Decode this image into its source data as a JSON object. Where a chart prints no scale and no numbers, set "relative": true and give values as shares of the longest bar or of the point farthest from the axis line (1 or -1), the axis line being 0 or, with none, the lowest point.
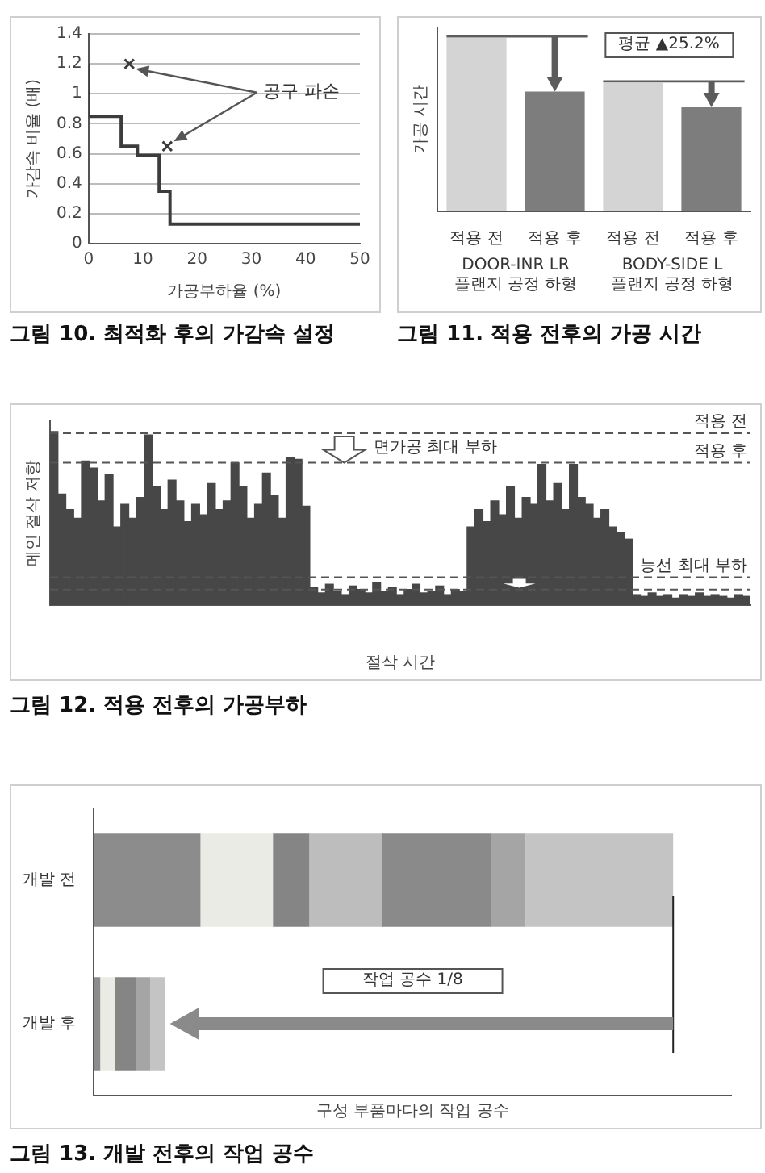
{
  "chart_data": [
    {
      "type": "step",
      "title": "그림 10. 최적화 후의 가감속 설정",
      "xlabel": "가공부하율 (%)",
      "ylabel": "가감속 비율 (배)",
      "xlim": [
        0,
        50
      ],
      "xticks": [
        0,
        10,
        20,
        30,
        40,
        50
      ],
      "ylim": [
        0,
        1.4
      ],
      "yticks": [
        0,
        0.2,
        0.4,
        0.6,
        0.8,
        1,
        1.2,
        1.4
      ],
      "grid": "y",
      "annotations": [
        "공구 파손"
      ],
      "series": [
        {
          "type": "step",
          "x": [
            0,
            6,
            9,
            13,
            15,
            24,
            50
          ],
          "values": [
            1.2,
            0.85,
            0.65,
            0.59,
            0.35,
            0.13,
            0.13
          ],
          "color": "#3c3c3c",
          "marker": "none"
        },
        {
          "type": "scatter",
          "x": [
            7.5,
            14.5
          ],
          "values": [
            1.2,
            0.65
          ],
          "color": "#3c3c3c",
          "marker": "cross"
        }
      ]
    },
    {
      "type": "bar",
      "title": "그림 11. 적용 전후의 가공 시간",
      "ylabel": "가공 시간",
      "relative": true,
      "categories": [
        "적용 전",
        "적용 후",
        "적용 전",
        "적용 후"
      ],
      "values": [
        1,
        0.69,
        0.74,
        0.6
      ],
      "colors": [
        "#d4d4d4",
        "#7d7d7d",
        "#d4d4d4",
        "#7d7d7d"
      ],
      "annotations": [
        "평균 ▲25.2%",
        "DOOR-INR LR 플랜지 공정 하형",
        "BODY-SIDE L 플랜지 공정 하형"
      ]
    },
    {
      "type": "bar",
      "title": "그림 12. 적용 전후의 가공부하",
      "xlabel": "절삭 시간",
      "ylabel": "메인 절삭 저항",
      "relative": true,
      "color": "#474747",
      "categories": [
        null,
        null,
        null,
        null,
        null,
        null,
        null,
        null,
        null,
        null,
        null,
        null,
        null,
        null,
        null,
        null,
        null,
        null,
        null,
        null,
        null,
        null,
        null,
        null,
        null,
        null,
        null,
        null,
        null,
        null,
        null,
        null,
        null,
        null,
        null,
        null,
        null,
        null,
        null,
        null,
        null,
        null,
        null,
        null,
        null,
        null,
        null,
        null,
        null,
        null,
        null,
        null,
        null,
        null,
        null,
        null,
        null,
        null,
        null,
        null,
        null,
        null,
        null,
        null,
        null,
        null,
        null,
        null,
        null,
        null,
        null,
        null,
        null,
        null,
        null,
        null,
        null,
        null,
        null,
        null,
        null,
        null,
        null,
        null,
        null,
        null,
        null,
        null,
        null
      ],
      "values": [
        1,
        0.64,
        0.55,
        0.5,
        0.83,
        0.79,
        0.6,
        0.75,
        0.45,
        0.58,
        0.5,
        0.62,
        0.98,
        0.68,
        0.55,
        0.72,
        0.6,
        0.48,
        0.58,
        0.52,
        0.7,
        0.55,
        0.6,
        0.82,
        0.68,
        0.5,
        0.58,
        0.76,
        0.63,
        0.5,
        0.85,
        0.84,
        0.57,
        0.1,
        0.07,
        0.12,
        0.08,
        0.06,
        0.11,
        0.09,
        0.07,
        0.13,
        0.08,
        0.1,
        0.06,
        0.09,
        0.12,
        0.07,
        0.08,
        0.11,
        0.06,
        0.09,
        0.08,
        0.45,
        0.55,
        0.48,
        0.6,
        0.52,
        0.68,
        0.5,
        0.62,
        0.58,
        0.81,
        0.6,
        0.7,
        0.55,
        0.81,
        0.62,
        0.58,
        0.5,
        0.55,
        0.45,
        0.42,
        0.38,
        0.06,
        0.05,
        0.07,
        0.05,
        0.06,
        0.04,
        0.06,
        0.05,
        0.07,
        0.05,
        0.06,
        0.05,
        0.04,
        0.06,
        0.05
      ],
      "ref_lines": [
        {
          "axis": "y",
          "value": 0.99,
          "label": "적용 전",
          "line_style": "dashed"
        },
        {
          "axis": "y",
          "value": 0.82,
          "label": "적용 후",
          "line_style": "dashed"
        },
        {
          "axis": "y",
          "value": 0.16,
          "label": "능선 최대 부하",
          "line_style": "dashed"
        },
        {
          "axis": "y",
          "value": 0.09,
          "line_style": "dashed"
        }
      ],
      "annotations": [
        "면가공 최대 부하"
      ]
    },
    {
      "type": "bar",
      "title": "그림 13. 개발 전후의 작업 공수",
      "xlabel": "구성 부품마다의 작업 공수",
      "relative": true,
      "orientation": "horizontal",
      "stacked": true,
      "categories": [
        "개발 전",
        "개발 후"
      ],
      "annotations": [
        "작업 공수 1/8"
      ],
      "series": [
        {
          "values": [
            0.184,
            0.011
          ],
          "colors": [
            "#8c8c8c",
            "#8c8c8c"
          ]
        },
        {
          "values": [
            0.125,
            0.026
          ],
          "colors": [
            "#ebebe6",
            "#ebebe6"
          ]
        },
        {
          "values": [
            0.063,
            0.036
          ],
          "colors": [
            "#858585",
            "#858585"
          ]
        },
        {
          "values": [
            0.124,
            0.024
          ],
          "colors": [
            "#bdbdbd",
            "#a5a5a5"
          ]
        },
        {
          "values": [
            0.189,
            0.026
          ],
          "colors": [
            "#8a8a8a",
            "#c4c4c4"
          ]
        },
        {
          "values": [
            0.06,
            null
          ],
          "colors": [
            "#a5a5a5",
            "#a5a5a5"
          ]
        },
        {
          "values": [
            0.255,
            null
          ],
          "colors": [
            "#c4c4c4",
            "#c4c4c4"
          ]
        }
      ]
    }
  ]
}
